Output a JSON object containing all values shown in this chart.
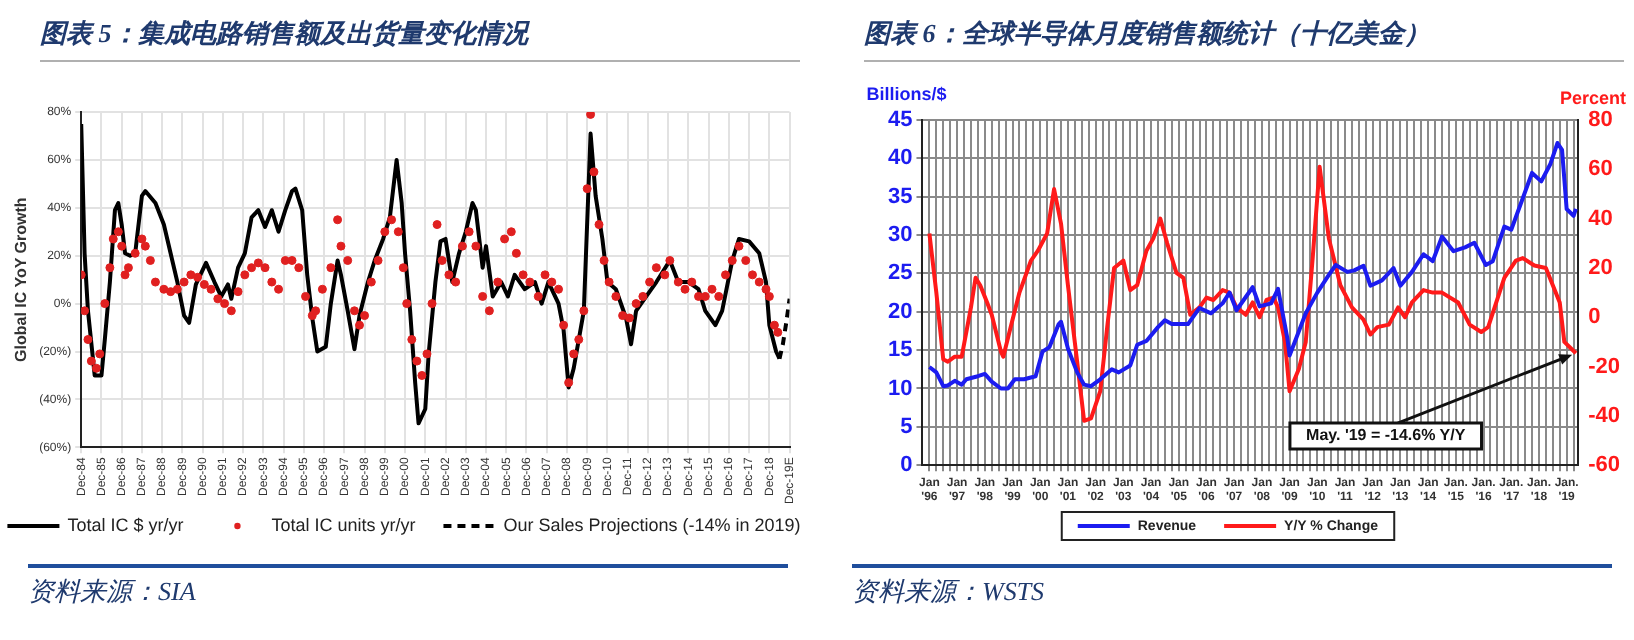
{
  "chart_data": [
    {
      "type": "line",
      "title": "图表 5：集成电路销售额及出货量变化情况",
      "ylabel": "Global IC YoY Growth",
      "xlim": [
        "1984-12",
        "2019-12"
      ],
      "xticks": [
        {
          "value": "1984-12",
          "label": "Dec-84"
        },
        {
          "value": "1985-12",
          "label": "Dec-85"
        },
        {
          "value": "1986-12",
          "label": "Dec-86"
        },
        {
          "value": "1987-12",
          "label": "Dec-87"
        },
        {
          "value": "1988-12",
          "label": "Dec-88"
        },
        {
          "value": "1989-12",
          "label": "Dec-89"
        },
        {
          "value": "1990-12",
          "label": "Dec-90"
        },
        {
          "value": "1991-12",
          "label": "Dec-91"
        },
        {
          "value": "1992-12",
          "label": "Dec-92"
        },
        {
          "value": "1993-12",
          "label": "Dec-93"
        },
        {
          "value": "1994-12",
          "label": "Dec-94"
        },
        {
          "value": "1995-12",
          "label": "Dec-95"
        },
        {
          "value": "1996-12",
          "label": "Dec-96"
        },
        {
          "value": "1997-12",
          "label": "Dec-97"
        },
        {
          "value": "1998-12",
          "label": "Dec-98"
        },
        {
          "value": "1999-12",
          "label": "Dec-99"
        },
        {
          "value": "2000-12",
          "label": "Dec-00"
        },
        {
          "value": "2001-12",
          "label": "Dec-01"
        },
        {
          "value": "2002-12",
          "label": "Dec-02"
        },
        {
          "value": "2003-12",
          "label": "Dec-03"
        },
        {
          "value": "2004-12",
          "label": "Dec-04"
        },
        {
          "value": "2005-12",
          "label": "Dec-05"
        },
        {
          "value": "2006-12",
          "label": "Dec-06"
        },
        {
          "value": "2007-12",
          "label": "Dec-07"
        },
        {
          "value": "2008-12",
          "label": "Dec-08"
        },
        {
          "value": "2009-12",
          "label": "Dec-09"
        },
        {
          "value": "2010-12",
          "label": "Dec-10"
        },
        {
          "value": "2011-12",
          "label": "Dec-11"
        },
        {
          "value": "2012-12",
          "label": "Dec-12"
        },
        {
          "value": "2013-12",
          "label": "Dec-13"
        },
        {
          "value": "2014-12",
          "label": "Dec-14"
        },
        {
          "value": "2015-12",
          "label": "Dec-15"
        },
        {
          "value": "2016-12",
          "label": "Dec-16"
        },
        {
          "value": "2017-12",
          "label": "Dec-17"
        },
        {
          "value": "2018-12",
          "label": "Dec-18"
        },
        {
          "value": "2019-12",
          "label": "Dec-19E"
        }
      ],
      "ylim": [
        -60,
        80
      ],
      "yticks": [
        {
          "value": -60,
          "label": "(60%)"
        },
        {
          "value": -40,
          "label": "(40%)"
        },
        {
          "value": -20,
          "label": "(20%)"
        },
        {
          "value": 0,
          "label": "0%"
        },
        {
          "value": 20,
          "label": "20%"
        },
        {
          "value": 40,
          "label": "40%"
        },
        {
          "value": 60,
          "label": "60%"
        },
        {
          "value": 80,
          "label": "80%"
        }
      ],
      "grid": true,
      "legend": "bottom",
      "series": [
        {
          "name": "Total IC $ yr/yr",
          "type": "line",
          "color": "#000000",
          "line_style": "solid",
          "x": [
            "1984-12",
            "1985-02",
            "1985-04",
            "1985-08",
            "1985-12",
            "1986-02",
            "1986-05",
            "1986-08",
            "1986-10",
            "1986-12",
            "1987-02",
            "1987-05",
            "1987-08",
            "1987-12",
            "1988-02",
            "1988-08",
            "1989-01",
            "1989-05",
            "1989-09",
            "1990-01",
            "1990-04",
            "1990-08",
            "1991-02",
            "1991-07",
            "1991-11",
            "1992-03",
            "1992-05",
            "1992-09",
            "1993-01",
            "1993-05",
            "1993-09",
            "1994-01",
            "1994-05",
            "1994-09",
            "1995-01",
            "1995-05",
            "1995-07",
            "1995-11",
            "1996-02",
            "1996-05",
            "1996-08",
            "1997-01",
            "1997-04",
            "1997-08",
            "1997-10",
            "1998-02",
            "1998-06",
            "1998-09",
            "1999-02",
            "1999-06",
            "1999-11",
            "2000-03",
            "2000-07",
            "2000-10",
            "2000-12",
            "2001-03",
            "2001-06",
            "2001-08",
            "2001-12",
            "2002-02",
            "2002-06",
            "2002-09",
            "2002-12",
            "2003-04",
            "2003-08",
            "2003-12",
            "2004-04",
            "2004-06",
            "2004-10",
            "2004-12",
            "2005-04",
            "2005-09",
            "2006-01",
            "2006-05",
            "2006-11",
            "2007-05",
            "2007-09",
            "2008-01",
            "2008-07",
            "2008-10",
            "2009-01",
            "2009-04",
            "2009-07",
            "2009-10",
            "2010-02",
            "2010-05",
            "2010-09",
            "2010-12",
            "2011-05",
            "2011-11",
            "2012-02",
            "2012-05",
            "2012-11",
            "2013-05",
            "2014-01",
            "2014-06",
            "2014-12",
            "2015-06",
            "2015-10",
            "2016-04",
            "2016-08",
            "2017-02",
            "2017-06",
            "2017-12",
            "2018-06",
            "2018-10",
            "2018-12",
            "2019-04",
            "2019-06"
          ],
          "values": [
            75,
            21,
            -3,
            -30,
            -30,
            -15,
            9,
            39,
            42,
            33,
            21,
            20,
            21,
            45,
            47,
            42,
            33,
            21,
            9,
            -5,
            -8,
            8,
            17,
            9,
            3,
            8,
            2,
            15,
            21,
            36,
            39,
            32,
            39,
            30,
            39,
            47,
            48,
            39,
            12,
            -6,
            -20,
            -18,
            0,
            18,
            12,
            -3,
            -19,
            -5,
            9,
            18,
            27,
            36,
            60,
            42,
            21,
            -3,
            -33,
            -50,
            -44,
            -21,
            9,
            26,
            27,
            9,
            21,
            30,
            42,
            39,
            15,
            24,
            3,
            9,
            3,
            12,
            6,
            9,
            0,
            9,
            0,
            -11,
            -35,
            -27,
            -15,
            -3,
            71,
            45,
            27,
            9,
            6,
            -6,
            -17,
            -3,
            3,
            9,
            18,
            9,
            9,
            6,
            -3,
            -9,
            -3,
            18,
            27,
            26,
            21,
            9,
            -9,
            -20,
            -23
          ]
        },
        {
          "name": "Total IC units yr/yr",
          "type": "scatter",
          "color": "#e02020",
          "marker": "circle",
          "x": [
            "1984-12",
            "1985-02",
            "1985-04",
            "1985-06",
            "1985-09",
            "1985-11",
            "1986-02",
            "1986-05",
            "1986-07",
            "1986-10",
            "1986-12",
            "1987-02",
            "1987-04",
            "1987-08",
            "1987-12",
            "1988-02",
            "1988-05",
            "1988-08",
            "1989-01",
            "1989-05",
            "1989-09",
            "1990-01",
            "1990-05",
            "1990-09",
            "1991-01",
            "1991-05",
            "1991-09",
            "1992-01",
            "1992-05",
            "1992-09",
            "1993-01",
            "1993-05",
            "1993-09",
            "1994-01",
            "1994-05",
            "1994-09",
            "1995-01",
            "1995-05",
            "1995-09",
            "1996-01",
            "1996-05",
            "1996-07",
            "1996-11",
            "1997-04",
            "1997-08",
            "1997-10",
            "1998-02",
            "1998-06",
            "1998-09",
            "1998-12",
            "1999-04",
            "1999-08",
            "1999-12",
            "2000-04",
            "2000-08",
            "2000-11",
            "2001-01",
            "2001-04",
            "2001-07",
            "2001-10",
            "2002-01",
            "2002-04",
            "2002-07",
            "2002-10",
            "2003-02",
            "2003-06",
            "2003-10",
            "2004-02",
            "2004-06",
            "2004-10",
            "2005-02",
            "2005-07",
            "2005-11",
            "2006-03",
            "2006-06",
            "2006-10",
            "2007-02",
            "2007-07",
            "2007-11",
            "2008-03",
            "2008-07",
            "2008-10",
            "2009-01",
            "2009-04",
            "2009-07",
            "2009-10",
            "2009-12",
            "2010-02",
            "2010-04",
            "2010-07",
            "2010-10",
            "2011-01",
            "2011-05",
            "2011-09",
            "2012-01",
            "2012-05",
            "2012-09",
            "2013-01",
            "2013-05",
            "2013-10",
            "2014-01",
            "2014-06",
            "2014-10",
            "2015-02",
            "2015-06",
            "2015-10",
            "2016-02",
            "2016-06",
            "2016-10",
            "2017-02",
            "2017-06",
            "2017-10",
            "2018-02",
            "2018-06",
            "2018-10",
            "2018-12",
            "2019-03",
            "2019-05"
          ],
          "values": [
            12,
            -3,
            -15,
            -24,
            -27,
            -21,
            0,
            15,
            27,
            30,
            24,
            12,
            15,
            21,
            27,
            24,
            18,
            9,
            6,
            5,
            6,
            9,
            12,
            11,
            8,
            6,
            2,
            0,
            -3,
            5,
            12,
            15,
            17,
            15,
            9,
            6,
            18,
            18,
            15,
            3,
            -5,
            -3,
            6,
            15,
            35,
            24,
            18,
            -3,
            -9,
            -5,
            9,
            18,
            30,
            35,
            30,
            15,
            0,
            -15,
            -24,
            -30,
            -21,
            0,
            33,
            18,
            12,
            9,
            24,
            30,
            24,
            3,
            -3,
            9,
            27,
            30,
            21,
            12,
            9,
            3,
            12,
            9,
            6,
            -9,
            -33,
            -21,
            -15,
            -3,
            48,
            79,
            55,
            33,
            18,
            9,
            3,
            -5,
            -6,
            0,
            3,
            9,
            15,
            12,
            18,
            9,
            6,
            9,
            3,
            3,
            6,
            3,
            12,
            18,
            24,
            18,
            12,
            9,
            6,
            3,
            -9,
            -12
          ]
        },
        {
          "name": "Our Sales Projections (-14% in 2019)",
          "type": "line",
          "color": "#000000",
          "line_style": "dashed",
          "x": [
            "2019-06",
            "2019-08",
            "2019-10",
            "2019-12"
          ],
          "values": [
            -23,
            -17,
            -8,
            2
          ]
        }
      ],
      "annotations": [
        "资料来源：SIA"
      ]
    },
    {
      "type": "line",
      "title": "图表 6：全球半导体月度销售额统计（十亿美金）",
      "ylabel": "Billions/$",
      "y2label": "Percent",
      "xlim": [
        "1995-10",
        "2019-06"
      ],
      "xticks": [
        {
          "value": "1996-01",
          "label": "Jan '96"
        },
        {
          "value": "1996-04",
          "label": null
        },
        {
          "value": "1996-07",
          "label": null
        },
        {
          "value": "1996-10",
          "label": null
        },
        {
          "value": "1997-01",
          "label": "Jan '97"
        },
        {
          "value": "1997-04",
          "label": null
        },
        {
          "value": "1997-07",
          "label": null
        },
        {
          "value": "1997-10",
          "label": null
        },
        {
          "value": "1998-01",
          "label": "Jan '98"
        },
        {
          "value": "1998-04",
          "label": null
        },
        {
          "value": "1998-07",
          "label": null
        },
        {
          "value": "1998-10",
          "label": null
        },
        {
          "value": "1999-01",
          "label": "Jan '99"
        },
        {
          "value": "1999-04",
          "label": null
        },
        {
          "value": "1999-07",
          "label": null
        },
        {
          "value": "1999-10",
          "label": null
        },
        {
          "value": "2000-01",
          "label": "Jan '00"
        },
        {
          "value": "2000-04",
          "label": null
        },
        {
          "value": "2000-07",
          "label": null
        },
        {
          "value": "2000-10",
          "label": null
        },
        {
          "value": "2001-01",
          "label": "Jan '01"
        },
        {
          "value": "2001-04",
          "label": null
        },
        {
          "value": "2001-07",
          "label": null
        },
        {
          "value": "2001-10",
          "label": null
        },
        {
          "value": "2002-01",
          "label": "Jan '02"
        },
        {
          "value": "2002-04",
          "label": null
        },
        {
          "value": "2002-07",
          "label": null
        },
        {
          "value": "2002-10",
          "label": null
        },
        {
          "value": "2003-01",
          "label": "Jan '03"
        },
        {
          "value": "2003-04",
          "label": null
        },
        {
          "value": "2003-07",
          "label": null
        },
        {
          "value": "2003-10",
          "label": null
        },
        {
          "value": "2004-01",
          "label": "Jan '04"
        },
        {
          "value": "2004-04",
          "label": null
        },
        {
          "value": "2004-07",
          "label": null
        },
        {
          "value": "2004-10",
          "label": null
        },
        {
          "value": "2005-01",
          "label": "Jan '05"
        },
        {
          "value": "2005-04",
          "label": null
        },
        {
          "value": "2005-07",
          "label": null
        },
        {
          "value": "2005-10",
          "label": null
        },
        {
          "value": "2006-01",
          "label": "Jan '06"
        },
        {
          "value": "2006-04",
          "label": null
        },
        {
          "value": "2006-07",
          "label": null
        },
        {
          "value": "2006-10",
          "label": null
        },
        {
          "value": "2007-01",
          "label": "Jan '07"
        },
        {
          "value": "2007-04",
          "label": null
        },
        {
          "value": "2007-07",
          "label": null
        },
        {
          "value": "2007-10",
          "label": null
        },
        {
          "value": "2008-01",
          "label": "Jan '08"
        },
        {
          "value": "2008-04",
          "label": null
        },
        {
          "value": "2008-07",
          "label": null
        },
        {
          "value": "2008-10",
          "label": null
        },
        {
          "value": "2009-01",
          "label": "Jan '09"
        },
        {
          "value": "2009-04",
          "label": null
        },
        {
          "value": "2009-07",
          "label": null
        },
        {
          "value": "2009-10",
          "label": null
        },
        {
          "value": "2010-01",
          "label": "Jan '10"
        },
        {
          "value": "2010-04",
          "label": null
        },
        {
          "value": "2010-07",
          "label": null
        },
        {
          "value": "2010-10",
          "label": null
        },
        {
          "value": "2011-01",
          "label": "Jan '11"
        },
        {
          "value": "2011-04",
          "label": null
        },
        {
          "value": "2011-07",
          "label": null
        },
        {
          "value": "2011-10",
          "label": null
        },
        {
          "value": "2012-01",
          "label": "Jan '12"
        },
        {
          "value": "2012-04",
          "label": null
        },
        {
          "value": "2012-07",
          "label": null
        },
        {
          "value": "2012-10",
          "label": null
        },
        {
          "value": "2013-01",
          "label": "Jan '13"
        },
        {
          "value": "2013-04",
          "label": null
        },
        {
          "value": "2013-07",
          "label": null
        },
        {
          "value": "2013-10",
          "label": null
        },
        {
          "value": "2014-01",
          "label": "Jan '14"
        },
        {
          "value": "2014-04",
          "label": null
        },
        {
          "value": "2014-07",
          "label": null
        },
        {
          "value": "2014-10",
          "label": null
        },
        {
          "value": "2015-01",
          "label": "Jan. '15"
        },
        {
          "value": "2015-04",
          "label": null
        },
        {
          "value": "2015-07",
          "label": null
        },
        {
          "value": "2015-10",
          "label": null
        },
        {
          "value": "2016-01",
          "label": "Jan. '16"
        },
        {
          "value": "2016-04",
          "label": null
        },
        {
          "value": "2016-07",
          "label": null
        },
        {
          "value": "2016-10",
          "label": null
        },
        {
          "value": "2017-01",
          "label": "Jan. '17"
        },
        {
          "value": "2017-04",
          "label": null
        },
        {
          "value": "2017-07",
          "label": null
        },
        {
          "value": "2017-10",
          "label": null
        },
        {
          "value": "2018-01",
          "label": "Jan. '18"
        },
        {
          "value": "2018-04",
          "label": null
        },
        {
          "value": "2018-07",
          "label": null
        },
        {
          "value": "2018-10",
          "label": null
        },
        {
          "value": "2019-01",
          "label": "Jan. '19"
        },
        {
          "value": "2019-04",
          "label": null
        }
      ],
      "ylim": [
        0,
        45
      ],
      "yticks": [
        0,
        5,
        10,
        15,
        20,
        25,
        30,
        35,
        40,
        45
      ],
      "y2lim": [
        -60,
        80
      ],
      "y2ticks": [
        -60,
        -40,
        -20,
        0,
        20,
        40,
        60,
        80
      ],
      "grid": true,
      "legend": "bottom",
      "series": [
        {
          "name": "Revenue",
          "type": "line",
          "color": "#1c1cf0",
          "x": [
            "1996-01",
            "1996-04",
            "1996-07",
            "1996-09",
            "1996-12",
            "1997-03",
            "1997-05",
            "1997-10",
            "1998-01",
            "1998-04",
            "1998-08",
            "1998-11",
            "1999-02",
            "1999-06",
            "1999-11",
            "2000-02",
            "2000-05",
            "2000-09",
            "2000-10",
            "2001-01",
            "2001-05",
            "2001-08",
            "2001-11",
            "2002-03",
            "2002-08",
            "2002-11",
            "2003-04",
            "2003-07",
            "2003-11",
            "2004-04",
            "2004-07",
            "2004-10",
            "2005-05",
            "2005-10",
            "2006-03",
            "2006-08",
            "2006-11",
            "2007-02",
            "2007-09",
            "2007-12",
            "2008-05",
            "2008-08",
            "2008-12",
            "2009-01",
            "2009-08",
            "2010-01",
            "2010-06",
            "2010-09",
            "2011-02",
            "2011-05",
            "2011-09",
            "2011-12",
            "2012-05",
            "2012-10",
            "2013-01",
            "2013-06",
            "2013-11",
            "2014-03",
            "2014-07",
            "2014-12",
            "2015-05",
            "2015-09",
            "2016-02",
            "2016-05",
            "2016-10",
            "2017-01",
            "2017-06",
            "2017-10",
            "2018-02",
            "2018-06",
            "2018-09",
            "2018-11",
            "2019-01",
            "2019-04",
            "2019-05"
          ],
          "values": [
            12.8,
            12.1,
            10.3,
            10.4,
            11,
            10.5,
            11.2,
            11.6,
            11.9,
            10.9,
            10,
            10,
            11.2,
            11.2,
            11.6,
            14.8,
            15.4,
            18.4,
            18.7,
            15.2,
            12.1,
            10.5,
            10.3,
            11.2,
            12.5,
            12.1,
            13,
            15.7,
            16.2,
            18,
            18.9,
            18.4,
            18.4,
            20.5,
            19.8,
            21.1,
            22.5,
            20.2,
            23.2,
            20.7,
            21.1,
            23,
            16.6,
            14.3,
            19.8,
            22.5,
            24.8,
            26.1,
            25.2,
            25.4,
            26,
            23.4,
            24.1,
            25.7,
            23.4,
            25.2,
            27.5,
            26.6,
            29.8,
            27.9,
            28.4,
            29,
            26.1,
            26.6,
            31.1,
            30.7,
            34.8,
            38.1,
            37,
            39.3,
            42,
            41.1,
            33.4,
            32.5,
            33.4
          ]
        },
        {
          "name": "Y/Y % Change",
          "type": "line",
          "color": "#ff1a1a",
          "axis": "y2",
          "x": [
            "1996-01",
            "1996-04",
            "1996-07",
            "1996-09",
            "1996-12",
            "1997-03",
            "1997-07",
            "1997-09",
            "1997-11",
            "1998-02",
            "1998-04",
            "1998-08",
            "1998-09",
            "1999-01",
            "1999-04",
            "1999-09",
            "1999-12",
            "2000-04",
            "2000-07",
            "2000-10",
            "2001-01",
            "2001-05",
            "2001-08",
            "2001-11",
            "2002-03",
            "2002-06",
            "2002-09",
            "2003-01",
            "2003-04",
            "2003-07",
            "2003-11",
            "2004-02",
            "2004-05",
            "2004-08",
            "2004-12",
            "2005-03",
            "2005-06",
            "2005-10",
            "2006-01",
            "2006-04",
            "2006-08",
            "2006-11",
            "2007-02",
            "2007-06",
            "2007-09",
            "2007-12",
            "2008-03",
            "2008-06",
            "2008-08",
            "2008-11",
            "2009-01",
            "2009-05",
            "2009-08",
            "2009-11",
            "2010-02",
            "2010-06",
            "2010-11",
            "2011-04",
            "2011-09",
            "2011-12",
            "2012-03",
            "2012-08",
            "2012-12",
            "2013-03",
            "2013-06",
            "2013-11",
            "2014-03",
            "2014-07",
            "2015-02",
            "2015-07",
            "2015-12",
            "2016-03",
            "2016-10",
            "2017-03",
            "2017-06",
            "2017-11",
            "2018-04",
            "2018-07",
            "2018-10",
            "2018-12",
            "2019-05"
          ],
          "values": [
            34,
            10,
            -17,
            -18,
            -16,
            -16,
            4,
            16,
            13,
            6,
            1,
            -14,
            -16,
            -1,
            10,
            23,
            27,
            34,
            52,
            38,
            13,
            -18,
            -42,
            -41,
            -30,
            -4,
            20,
            23,
            11,
            13,
            27,
            32,
            40,
            30,
            18,
            16,
            1,
            4,
            8,
            7,
            11,
            10,
            4,
            1,
            6,
            0,
            7,
            8,
            4,
            -10,
            -30,
            -21,
            -10,
            24,
            61,
            32,
            13,
            4,
            -1,
            -7,
            -4,
            -3,
            4,
            0,
            6,
            11,
            10,
            10,
            6,
            -3,
            -6,
            -4,
            16,
            23,
            24,
            21,
            20,
            13,
            6,
            -10,
            -14.6
          ]
        }
      ],
      "annotations": [
        "资料来源：WSTS",
        {
          "text": "May. '19 = -14.6% Y/Y",
          "x": "2019-05",
          "y": 14.6
        }
      ]
    }
  ]
}
